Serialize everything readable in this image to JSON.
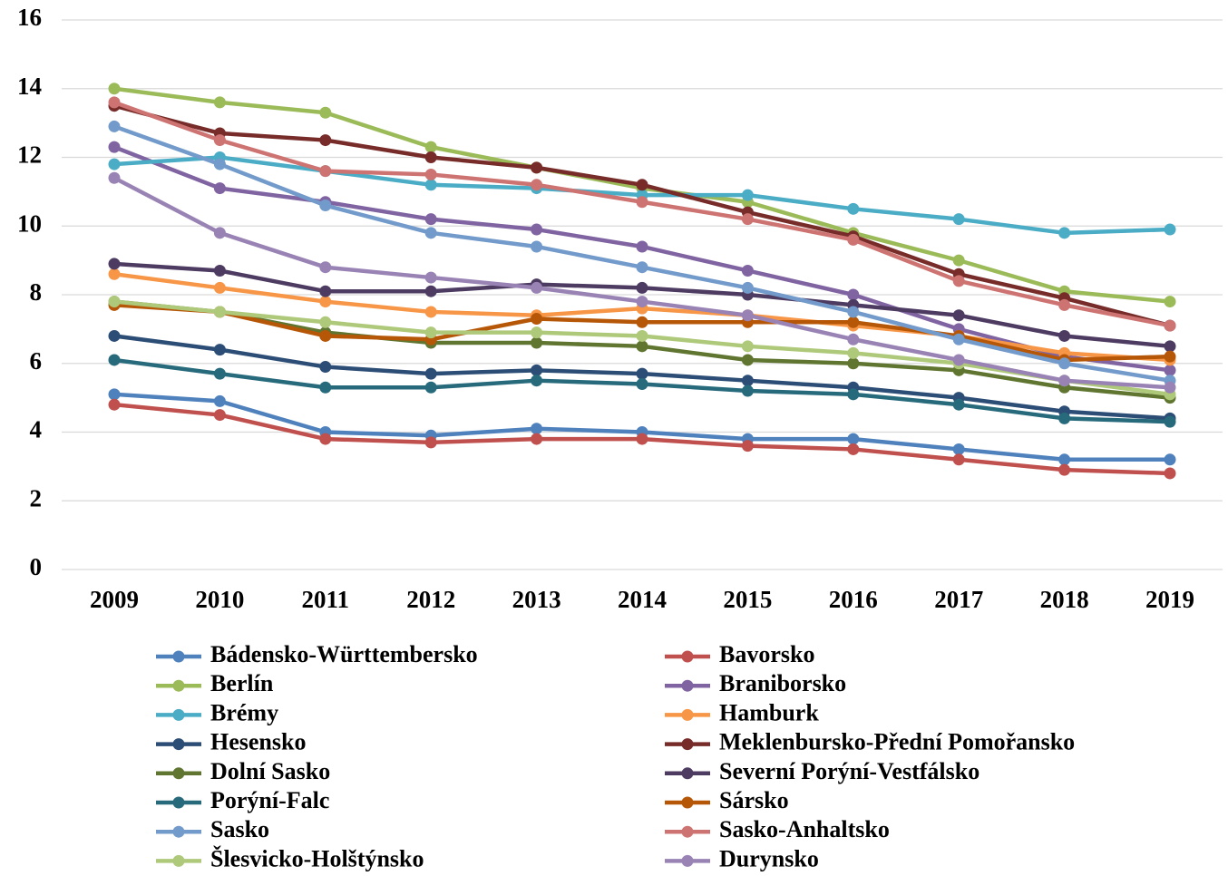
{
  "chart_data": {
    "type": "line",
    "categories": [
      "2009",
      "2010",
      "2011",
      "2012",
      "2013",
      "2014",
      "2015",
      "2016",
      "2017",
      "2018",
      "2019"
    ],
    "ylim": [
      0,
      16
    ],
    "yticks": [
      0,
      2,
      4,
      6,
      8,
      10,
      12,
      14,
      16
    ],
    "grid": true,
    "legend": "bottom",
    "series": [
      {
        "name": "Bádensko-Württembersko",
        "color": "#4f81bd",
        "values": [
          5.1,
          4.9,
          4.0,
          3.9,
          4.1,
          4.0,
          3.8,
          3.8,
          3.5,
          3.2,
          3.2
        ]
      },
      {
        "name": "Bavorsko",
        "color": "#c0504d",
        "values": [
          4.8,
          4.5,
          3.8,
          3.7,
          3.8,
          3.8,
          3.6,
          3.5,
          3.2,
          2.9,
          2.8
        ]
      },
      {
        "name": "Berlín",
        "color": "#9bbb59",
        "values": [
          14.0,
          13.6,
          13.3,
          12.3,
          11.7,
          11.1,
          10.7,
          9.8,
          9.0,
          8.1,
          7.8
        ]
      },
      {
        "name": "Braniborsko",
        "color": "#8064a2",
        "values": [
          12.3,
          11.1,
          10.7,
          10.2,
          9.9,
          9.4,
          8.7,
          8.0,
          7.0,
          6.2,
          5.8
        ]
      },
      {
        "name": "Brémy",
        "color": "#4bacc6",
        "values": [
          11.8,
          12.0,
          11.6,
          11.2,
          11.1,
          10.9,
          10.9,
          10.5,
          10.2,
          9.8,
          9.9
        ]
      },
      {
        "name": "Hamburk",
        "color": "#f79646",
        "values": [
          8.6,
          8.2,
          7.8,
          7.5,
          7.4,
          7.6,
          7.4,
          7.1,
          6.8,
          6.3,
          6.1
        ]
      },
      {
        "name": "Hesensko",
        "color": "#2c4d75",
        "values": [
          6.8,
          6.4,
          5.9,
          5.7,
          5.8,
          5.7,
          5.5,
          5.3,
          5.0,
          4.6,
          4.4
        ]
      },
      {
        "name": "Meklenbursko-Přední Pomořansko",
        "color": "#772c2a",
        "values": [
          13.5,
          12.7,
          12.5,
          12.0,
          11.7,
          11.2,
          10.4,
          9.7,
          8.6,
          7.9,
          7.1
        ]
      },
      {
        "name": "Dolní Sasko",
        "color": "#5f7530",
        "values": [
          7.8,
          7.5,
          6.9,
          6.6,
          6.6,
          6.5,
          6.1,
          6.0,
          5.8,
          5.3,
          5.0
        ]
      },
      {
        "name": "Severní Porýní-Vestfálsko",
        "color": "#4d3b62",
        "values": [
          8.9,
          8.7,
          8.1,
          8.1,
          8.3,
          8.2,
          8.0,
          7.7,
          7.4,
          6.8,
          6.5
        ]
      },
      {
        "name": "Porýní-Falc",
        "color": "#276a7c",
        "values": [
          6.1,
          5.7,
          5.3,
          5.3,
          5.5,
          5.4,
          5.2,
          5.1,
          4.8,
          4.4,
          4.3
        ]
      },
      {
        "name": "Sársko",
        "color": "#b65708",
        "values": [
          7.7,
          7.5,
          6.8,
          6.7,
          7.3,
          7.2,
          7.2,
          7.2,
          6.8,
          6.1,
          6.2
        ]
      },
      {
        "name": "Sasko",
        "color": "#729aca",
        "values": [
          12.9,
          11.8,
          10.6,
          9.8,
          9.4,
          8.8,
          8.2,
          7.5,
          6.7,
          6.0,
          5.5
        ]
      },
      {
        "name": "Sasko-Anhaltsko",
        "color": "#cd7371",
        "values": [
          13.6,
          12.5,
          11.6,
          11.5,
          11.2,
          10.7,
          10.2,
          9.6,
          8.4,
          7.7,
          7.1
        ]
      },
      {
        "name": "Šlesvicko-Holštýnsko",
        "color": "#afc97a",
        "values": [
          7.8,
          7.5,
          7.2,
          6.9,
          6.9,
          6.8,
          6.5,
          6.3,
          6.0,
          5.5,
          5.1
        ]
      },
      {
        "name": "Durynsko",
        "color": "#9983b5",
        "values": [
          11.4,
          9.8,
          8.8,
          8.5,
          8.2,
          7.8,
          7.4,
          6.7,
          6.1,
          5.5,
          5.3
        ]
      }
    ]
  }
}
